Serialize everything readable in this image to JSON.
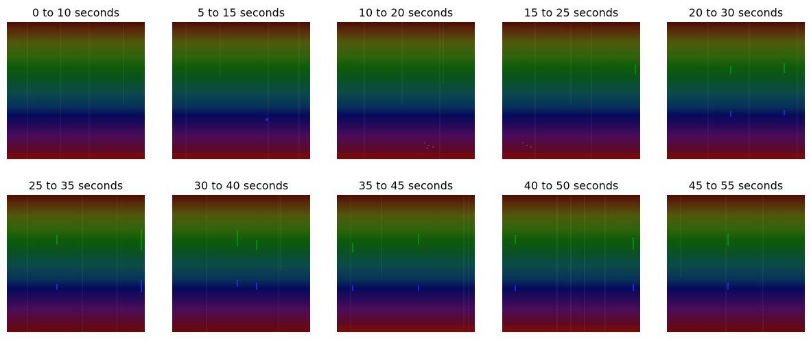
{
  "figure": {
    "panels": [
      {
        "title": "0 to 10 seconds"
      },
      {
        "title": "5 to 15 seconds"
      },
      {
        "title": "10 to 20 seconds"
      },
      {
        "title": "15 to 25 seconds"
      },
      {
        "title": "20 to 30 seconds"
      },
      {
        "title": "25 to 35 seconds"
      },
      {
        "title": "30 to 40 seconds"
      },
      {
        "title": "35 to 45 seconds"
      },
      {
        "title": "40 to 50 seconds"
      },
      {
        "title": "45 to 55 seconds"
      }
    ],
    "colors": {
      "background": "#ffffff",
      "title_text": "#000000",
      "band_top": "#4a0c06",
      "band_yellow": "#4f5a0b",
      "band_green": "#0d5c08",
      "band_teal": "#0a4a4a",
      "band_blue": "#050a5c",
      "band_violet": "#4a0c5a",
      "band_bottom": "#6a0808"
    }
  }
}
